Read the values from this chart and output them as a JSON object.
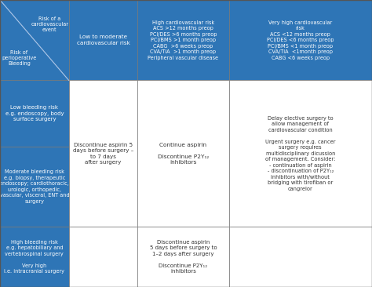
{
  "bg_color": "#ffffff",
  "header_bg": "#2e75b6",
  "header_text_color": "#ffffff",
  "row_bg_blue": "#2e75b6",
  "row_bg_white": "#ffffff",
  "cell_text_color": "#333333",
  "col_headers": [
    "",
    "Low to moderate\ncardiovascular risk",
    "High cardiovascular risk\nACS >12 months preop\nPCI/DES >6 months preop\nPCI/BMS >1 month preop\nCABG  >6 weeks preop\nCVA/TIA  >1 month preop\nPeripheral vascular disease",
    "Very high cardiovascular\nrisk\nACS <12 months preop\nPCI/DES <6 months preop\nPCI/BMS <1 month preop\nCVA/TIA  <1month preop\nCABG <6 weeks preop"
  ],
  "row_headers": [
    "Low bleeding risk\ne.g. endoscopy, body\nsurface surgery",
    "Moderate bleeding risk\ne.g. biopsy, therapeutic\nendoscopy; cardiothoracic,\nurologic, orthopedic,\nvascular, visceral, ENT and\nsurgery",
    "High bleeding risk\ne.g. hepatobiliary and\nvertebrospinal surgery\n\nVery high\ni.e. intracranial surgery"
  ],
  "diagonal_top_right": "Risk of a\ncardiovascular\nevent",
  "diagonal_bottom_left": "Risk of\nperioperative\nBleeding",
  "cell_col1_rows12": "Discontinue aspirin 5\ndays before surgery –\nto 7 days\nafter surgery",
  "cell_col2_rows12": "Continue aspirin\n\nDiscontinue P2Y₁₂\ninhibitors",
  "cell_col3_rows12": "Delay elective surgery to\nallow management of\ncardiovascular condition\n\nUrgent surgery e.g. cancer\nsurgery requires\nmultidisciplinary dicussion\nof management. Consider:\n- continuation of aspirin\n- discontinuation of P2Y₁₂\ninhibitors with/without\nbridging with tirofiban or\ncangrelor",
  "cell_col1_row3": "",
  "cell_col2_row3": "Discontinue aspirin\n5 days before surgery to\n1–2 days after surgery\n\nDiscontinue P2Y₁₂\ninhibitors",
  "cell_col3_row3": "",
  "figsize": [
    4.74,
    3.66
  ],
  "dpi": 100
}
